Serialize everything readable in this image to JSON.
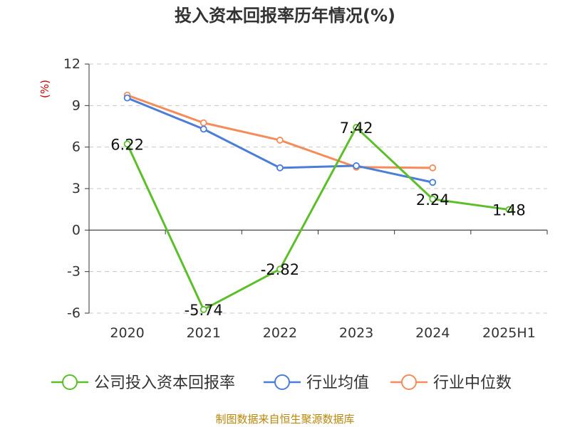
{
  "chart_data": {
    "type": "line",
    "title": "投入资本回报率历年情况(%)",
    "ylabel": "(%)",
    "xlabel": "",
    "categories": [
      "2020",
      "2021",
      "2022",
      "2023",
      "2024",
      "2025H1"
    ],
    "ylim": [
      -6,
      12
    ],
    "yticks": [
      "12",
      "9",
      "6",
      "3",
      "0",
      "-3",
      "-6"
    ],
    "grid": true,
    "legend_position": "bottom",
    "series": [
      {
        "name": "公司投入资本回报率",
        "color": "#5cbf2a",
        "values": [
          6.22,
          -5.74,
          -2.82,
          7.42,
          2.24,
          1.48
        ],
        "labels": [
          "6.22",
          "-5.74",
          "-2.82",
          "7.42",
          "2.24",
          "1.48"
        ]
      },
      {
        "name": "行业均值",
        "color": "#4a7ed8",
        "values": [
          9.55,
          7.3,
          4.5,
          4.65,
          3.45,
          null
        ]
      },
      {
        "name": "行业中位数",
        "color": "#f58c5a",
        "values": [
          9.75,
          7.75,
          6.5,
          4.55,
          4.5,
          null
        ]
      }
    ],
    "source": "制图数据来自恒生聚源数据库",
    "title_color": "#333333",
    "ylabel_color": "#cc0000",
    "source_color": "#b8860b"
  }
}
